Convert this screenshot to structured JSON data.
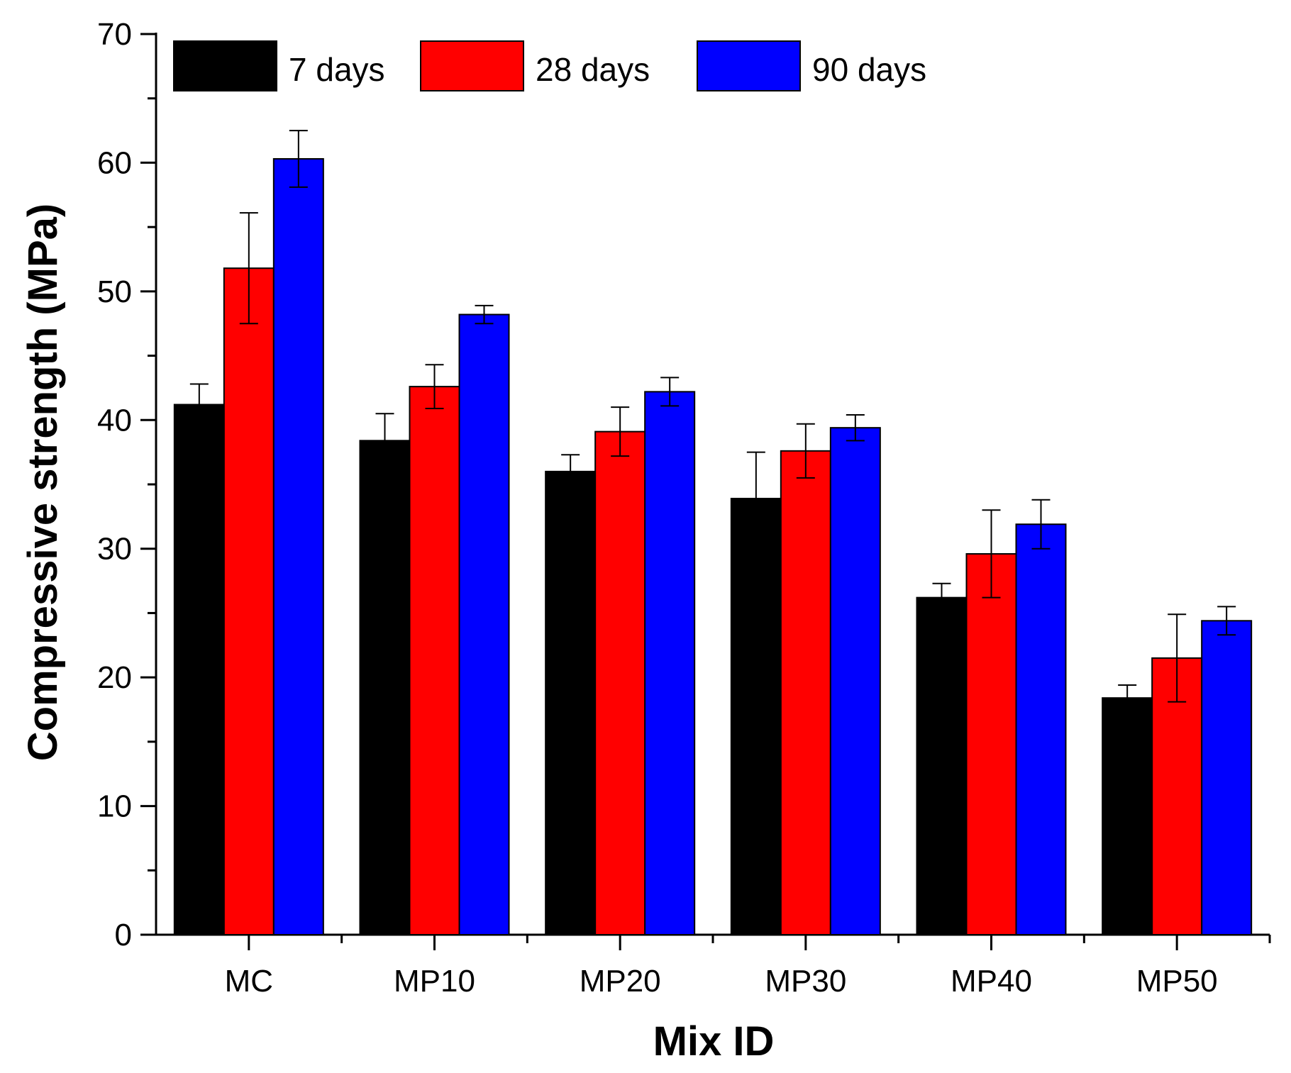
{
  "chart_data": {
    "type": "bar",
    "title": "",
    "xlabel": "Mix ID",
    "ylabel": "Compressive strength (MPa)",
    "ylim": [
      0,
      70
    ],
    "yticks": [
      0,
      10,
      20,
      30,
      40,
      50,
      60,
      70
    ],
    "categories": [
      "MC",
      "MP10",
      "MP20",
      "MP30",
      "MP40",
      "MP50"
    ],
    "series": [
      {
        "name": "7 days",
        "color": "#000000",
        "values": [
          41.2,
          38.4,
          36.0,
          33.9,
          26.2,
          18.4
        ],
        "errors": [
          1.6,
          2.1,
          1.3,
          3.6,
          1.1,
          1.0
        ]
      },
      {
        "name": "28 days",
        "color": "#ff0000",
        "values": [
          51.8,
          42.6,
          39.1,
          37.6,
          29.6,
          21.5
        ],
        "errors": [
          4.3,
          1.7,
          1.9,
          2.1,
          3.4,
          3.4
        ]
      },
      {
        "name": "90 days",
        "color": "#0000ff",
        "values": [
          60.3,
          48.2,
          42.2,
          39.4,
          31.9,
          24.4
        ],
        "errors": [
          2.2,
          0.7,
          1.1,
          1.0,
          1.9,
          1.1
        ]
      }
    ],
    "legend_position": "top-left",
    "grid": false
  }
}
